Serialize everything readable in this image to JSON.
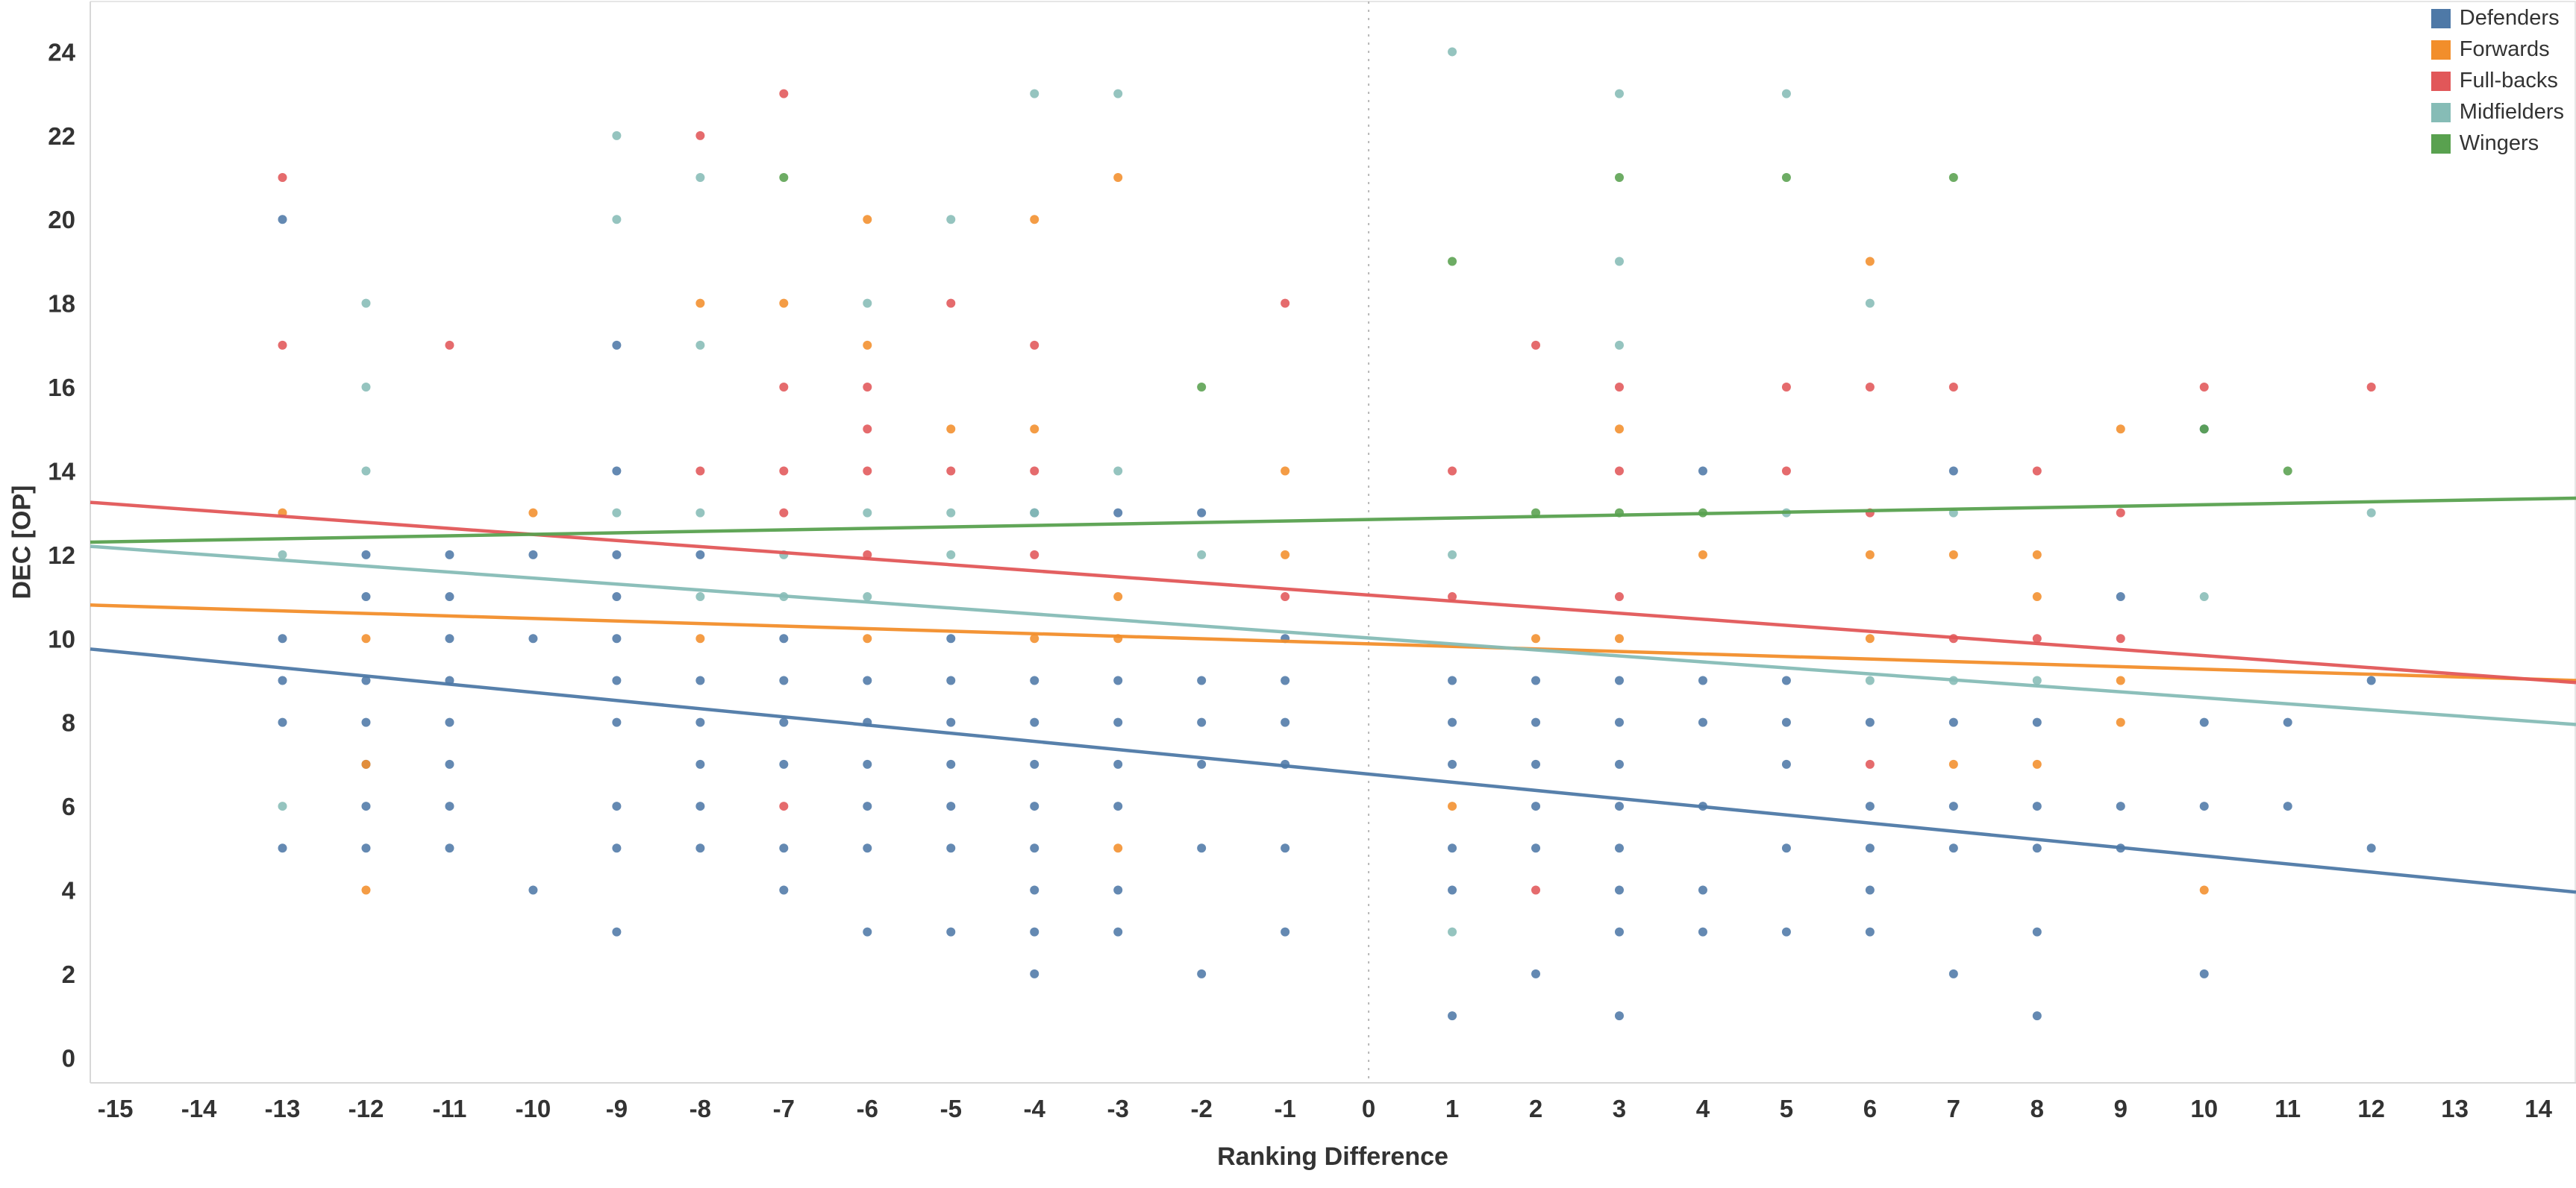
{
  "chart_data": {
    "type": "scatter",
    "title": "",
    "xlabel": "Ranking Difference",
    "ylabel": "DEC [OP]",
    "xlim": [
      -15.3,
      14.45
    ],
    "ylim": [
      -0.6,
      25.2
    ],
    "x_ticks": [
      -15,
      -14,
      -13,
      -12,
      -11,
      -10,
      -9,
      -8,
      -7,
      -6,
      -5,
      -4,
      -3,
      -2,
      -1,
      0,
      1,
      2,
      3,
      4,
      5,
      6,
      7,
      8,
      9,
      10,
      11,
      12,
      13,
      14
    ],
    "y_ticks": [
      0,
      2,
      4,
      6,
      8,
      10,
      12,
      14,
      16,
      18,
      20,
      22,
      24
    ],
    "grid": false,
    "reference_line_x": 0,
    "legend_position": "top-right",
    "axis_color": "#d8d8d8",
    "border_color": "#e6e6e6",
    "tick_color": "#333333",
    "series": [
      {
        "name": "Defenders",
        "color": "#4e79a7",
        "trend": {
          "y_left": 9.75,
          "y_right": 3.95
        },
        "points": [
          [
            -13,
            20
          ],
          [
            -13,
            10
          ],
          [
            -13,
            9
          ],
          [
            -13,
            8
          ],
          [
            -13,
            5
          ],
          [
            -12,
            12
          ],
          [
            -12,
            11
          ],
          [
            -12,
            9
          ],
          [
            -12,
            8
          ],
          [
            -12,
            7
          ],
          [
            -12,
            6
          ],
          [
            -12,
            5
          ],
          [
            -11,
            12
          ],
          [
            -11,
            11
          ],
          [
            -11,
            10
          ],
          [
            -11,
            9
          ],
          [
            -11,
            8
          ],
          [
            -11,
            7
          ],
          [
            -11,
            6
          ],
          [
            -11,
            5
          ],
          [
            -10,
            12
          ],
          [
            -10,
            10
          ],
          [
            -10,
            4
          ],
          [
            -9,
            17
          ],
          [
            -9,
            14
          ],
          [
            -9,
            12
          ],
          [
            -9,
            11
          ],
          [
            -9,
            10
          ],
          [
            -9,
            9
          ],
          [
            -9,
            8
          ],
          [
            -9,
            6
          ],
          [
            -9,
            5
          ],
          [
            -9,
            3
          ],
          [
            -8,
            12
          ],
          [
            -8,
            9
          ],
          [
            -8,
            8
          ],
          [
            -8,
            7
          ],
          [
            -8,
            6
          ],
          [
            -8,
            5
          ],
          [
            -7,
            10
          ],
          [
            -7,
            9
          ],
          [
            -7,
            8
          ],
          [
            -7,
            7
          ],
          [
            -7,
            5
          ],
          [
            -7,
            4
          ],
          [
            -6,
            9
          ],
          [
            -6,
            8
          ],
          [
            -6,
            7
          ],
          [
            -6,
            6
          ],
          [
            -6,
            5
          ],
          [
            -6,
            3
          ],
          [
            -5,
            10
          ],
          [
            -5,
            9
          ],
          [
            -5,
            8
          ],
          [
            -5,
            7
          ],
          [
            -5,
            6
          ],
          [
            -5,
            5
          ],
          [
            -5,
            3
          ],
          [
            -4,
            13
          ],
          [
            -4,
            9
          ],
          [
            -4,
            8
          ],
          [
            -4,
            7
          ],
          [
            -4,
            6
          ],
          [
            -4,
            5
          ],
          [
            -4,
            4
          ],
          [
            -4,
            3
          ],
          [
            -4,
            2
          ],
          [
            -3,
            13
          ],
          [
            -3,
            9
          ],
          [
            -3,
            8
          ],
          [
            -3,
            7
          ],
          [
            -3,
            6
          ],
          [
            -3,
            4
          ],
          [
            -3,
            3
          ],
          [
            -2,
            13
          ],
          [
            -2,
            9
          ],
          [
            -2,
            8
          ],
          [
            -2,
            7
          ],
          [
            -2,
            5
          ],
          [
            -2,
            2
          ],
          [
            -1,
            10
          ],
          [
            -1,
            9
          ],
          [
            -1,
            8
          ],
          [
            -1,
            7
          ],
          [
            -1,
            5
          ],
          [
            -1,
            3
          ],
          [
            1,
            9
          ],
          [
            1,
            8
          ],
          [
            1,
            7
          ],
          [
            1,
            5
          ],
          [
            1,
            4
          ],
          [
            1,
            1
          ],
          [
            2,
            9
          ],
          [
            2,
            8
          ],
          [
            2,
            7
          ],
          [
            2,
            6
          ],
          [
            2,
            5
          ],
          [
            2,
            2
          ],
          [
            3,
            9
          ],
          [
            3,
            8
          ],
          [
            3,
            7
          ],
          [
            3,
            6
          ],
          [
            3,
            5
          ],
          [
            3,
            4
          ],
          [
            3,
            3
          ],
          [
            3,
            1
          ],
          [
            4,
            14
          ],
          [
            4,
            9
          ],
          [
            4,
            8
          ],
          [
            4,
            6
          ],
          [
            4,
            4
          ],
          [
            4,
            3
          ],
          [
            5,
            9
          ],
          [
            5,
            8
          ],
          [
            5,
            7
          ],
          [
            5,
            5
          ],
          [
            5,
            3
          ],
          [
            6,
            8
          ],
          [
            6,
            6
          ],
          [
            6,
            5
          ],
          [
            6,
            4
          ],
          [
            6,
            3
          ],
          [
            7,
            14
          ],
          [
            7,
            8
          ],
          [
            7,
            6
          ],
          [
            7,
            5
          ],
          [
            7,
            2
          ],
          [
            8,
            8
          ],
          [
            8,
            6
          ],
          [
            8,
            5
          ],
          [
            8,
            3
          ],
          [
            8,
            1
          ],
          [
            9,
            11
          ],
          [
            9,
            6
          ],
          [
            9,
            5
          ],
          [
            10,
            15
          ],
          [
            10,
            8
          ],
          [
            10,
            6
          ],
          [
            10,
            2
          ],
          [
            11,
            8
          ],
          [
            11,
            6
          ],
          [
            12,
            9
          ],
          [
            12,
            5
          ]
        ]
      },
      {
        "name": "Forwards",
        "color": "#f28e2b",
        "trend": {
          "y_left": 10.8,
          "y_right": 9.0
        },
        "points": [
          [
            -13,
            13
          ],
          [
            -12,
            10
          ],
          [
            -12,
            7
          ],
          [
            -12,
            4
          ],
          [
            -10,
            13
          ],
          [
            -8,
            18
          ],
          [
            -8,
            10
          ],
          [
            -7,
            18
          ],
          [
            -6,
            20
          ],
          [
            -6,
            17
          ],
          [
            -6,
            10
          ],
          [
            -5,
            15
          ],
          [
            -4,
            20
          ],
          [
            -4,
            15
          ],
          [
            -4,
            10
          ],
          [
            -3,
            21
          ],
          [
            -3,
            11
          ],
          [
            -3,
            10
          ],
          [
            -3,
            5
          ],
          [
            -1,
            14
          ],
          [
            -1,
            12
          ],
          [
            1,
            6
          ],
          [
            2,
            10
          ],
          [
            3,
            15
          ],
          [
            3,
            10
          ],
          [
            4,
            12
          ],
          [
            6,
            19
          ],
          [
            6,
            12
          ],
          [
            6,
            10
          ],
          [
            7,
            12
          ],
          [
            7,
            7
          ],
          [
            8,
            12
          ],
          [
            8,
            11
          ],
          [
            8,
            7
          ],
          [
            9,
            15
          ],
          [
            9,
            9
          ],
          [
            9,
            8
          ],
          [
            10,
            4
          ]
        ]
      },
      {
        "name": "Full-backs",
        "color": "#e15759",
        "trend": {
          "y_left": 13.25,
          "y_right": 8.95
        },
        "points": [
          [
            -13,
            21
          ],
          [
            -13,
            17
          ],
          [
            -11,
            17
          ],
          [
            -8,
            22
          ],
          [
            -8,
            14
          ],
          [
            -7,
            23
          ],
          [
            -7,
            16
          ],
          [
            -7,
            14
          ],
          [
            -7,
            13
          ],
          [
            -7,
            6
          ],
          [
            -6,
            16
          ],
          [
            -6,
            15
          ],
          [
            -6,
            14
          ],
          [
            -6,
            12
          ],
          [
            -5,
            18
          ],
          [
            -5,
            14
          ],
          [
            -4,
            17
          ],
          [
            -4,
            14
          ],
          [
            -4,
            12
          ],
          [
            -1,
            18
          ],
          [
            -1,
            11
          ],
          [
            1,
            14
          ],
          [
            1,
            11
          ],
          [
            2,
            17
          ],
          [
            2,
            4
          ],
          [
            3,
            16
          ],
          [
            3,
            14
          ],
          [
            3,
            11
          ],
          [
            5,
            16
          ],
          [
            5,
            14
          ],
          [
            6,
            16
          ],
          [
            6,
            13
          ],
          [
            6,
            7
          ],
          [
            7,
            16
          ],
          [
            7,
            10
          ],
          [
            8,
            14
          ],
          [
            8,
            10
          ],
          [
            9,
            13
          ],
          [
            9,
            10
          ],
          [
            10,
            16
          ],
          [
            12,
            16
          ]
        ]
      },
      {
        "name": "Midfielders",
        "color": "#86bcb6",
        "trend": {
          "y_left": 12.2,
          "y_right": 7.95
        },
        "points": [
          [
            -13,
            12
          ],
          [
            -13,
            6
          ],
          [
            -12,
            18
          ],
          [
            -12,
            16
          ],
          [
            -12,
            14
          ],
          [
            -9,
            22
          ],
          [
            -9,
            20
          ],
          [
            -9,
            13
          ],
          [
            -8,
            21
          ],
          [
            -8,
            17
          ],
          [
            -8,
            13
          ],
          [
            -8,
            11
          ],
          [
            -7,
            12
          ],
          [
            -7,
            11
          ],
          [
            -6,
            18
          ],
          [
            -6,
            13
          ],
          [
            -6,
            11
          ],
          [
            -5,
            20
          ],
          [
            -5,
            13
          ],
          [
            -5,
            12
          ],
          [
            -4,
            23
          ],
          [
            -4,
            13
          ],
          [
            -3,
            23
          ],
          [
            -3,
            14
          ],
          [
            -2,
            12
          ],
          [
            1,
            24
          ],
          [
            1,
            12
          ],
          [
            1,
            3
          ],
          [
            3,
            23
          ],
          [
            3,
            19
          ],
          [
            3,
            17
          ],
          [
            5,
            23
          ],
          [
            5,
            13
          ],
          [
            6,
            18
          ],
          [
            6,
            9
          ],
          [
            7,
            13
          ],
          [
            7,
            9
          ],
          [
            8,
            9
          ],
          [
            10,
            11
          ],
          [
            12,
            13
          ]
        ]
      },
      {
        "name": "Wingers",
        "color": "#59a14f",
        "trend": {
          "y_left": 12.3,
          "y_right": 13.35
        },
        "points": [
          [
            -7,
            21
          ],
          [
            -2,
            16
          ],
          [
            1,
            19
          ],
          [
            2,
            13
          ],
          [
            3,
            21
          ],
          [
            3,
            13
          ],
          [
            4,
            13
          ],
          [
            5,
            21
          ],
          [
            7,
            21
          ],
          [
            10,
            15
          ],
          [
            11,
            14
          ]
        ]
      }
    ]
  }
}
